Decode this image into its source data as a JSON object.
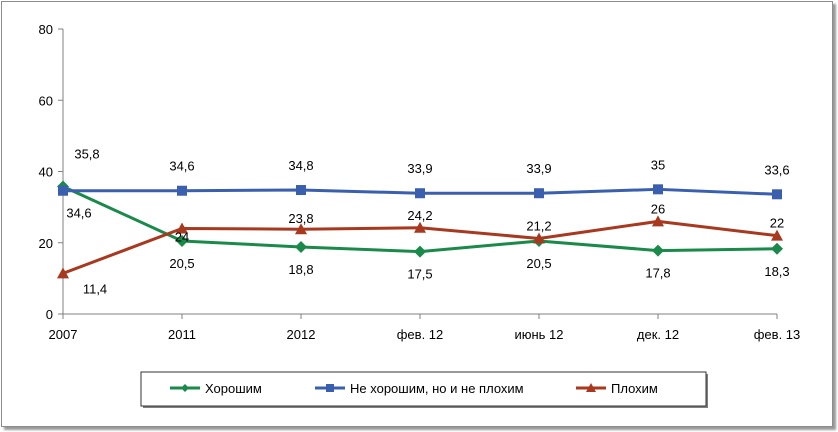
{
  "chart_data": {
    "type": "line",
    "categories": [
      "2007",
      "2011",
      "2012",
      "фев. 12",
      "июнь 12",
      "дек. 12",
      "фев. 13"
    ],
    "ylim": [
      0,
      80
    ],
    "yticks": [
      "0",
      "20",
      "40",
      "60",
      "80"
    ],
    "title": "",
    "xlabel": "",
    "ylabel": "",
    "legend_position": "bottom",
    "series": [
      {
        "name": "Хорошим",
        "color": "#1a8a4a",
        "marker": "diamond",
        "values": [
          35.8,
          20.5,
          18.8,
          17.5,
          20.5,
          17.8,
          18.3
        ],
        "labels": [
          "35,8",
          "20,5",
          "18,8",
          "17,5",
          "20,5",
          "17,8",
          "18,3"
        ]
      },
      {
        "name": "Не хорошим, но и не плохим",
        "color": "#3a5fae",
        "marker": "square",
        "values": [
          34.6,
          34.6,
          34.8,
          33.9,
          33.9,
          35,
          33.6
        ],
        "labels": [
          "34,6",
          "34,6",
          "34,8",
          "33,9",
          "33,9",
          "35",
          "33,6"
        ]
      },
      {
        "name": "Плохим",
        "color": "#a8381e",
        "marker": "triangle",
        "values": [
          11.4,
          24,
          23.8,
          24.2,
          21.2,
          26,
          22
        ],
        "labels": [
          "11,4",
          "24",
          "23,8",
          "24,2",
          "21,2",
          "26",
          "22"
        ]
      }
    ]
  }
}
